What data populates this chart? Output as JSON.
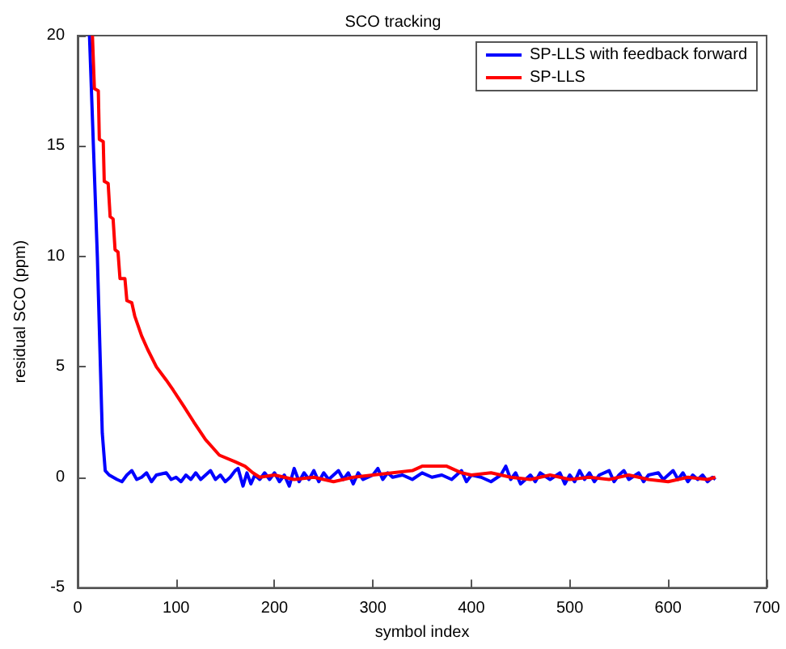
{
  "chart_data": {
    "type": "line",
    "title": "SCO tracking",
    "xlabel": "symbol index",
    "ylabel": "residual SCO (ppm)",
    "xlim": [
      0,
      700
    ],
    "xticks": [
      0,
      100,
      200,
      300,
      400,
      500,
      600,
      700
    ],
    "ylim": [
      -5,
      20
    ],
    "yticks": [
      -5,
      0,
      5,
      10,
      15,
      20
    ],
    "grid": false,
    "legend": "top right",
    "marker": "none",
    "line_style": "solid",
    "series": [
      {
        "name": "SP-LLS with feedback forward",
        "color": "#0000ff",
        "x": [
          12,
          20,
          25,
          28,
          32,
          40,
          45,
          50,
          55,
          60,
          65,
          70,
          75,
          80,
          90,
          95,
          100,
          105,
          110,
          115,
          120,
          125,
          130,
          135,
          140,
          145,
          150,
          155,
          160,
          163,
          168,
          172,
          176,
          180,
          185,
          190,
          195,
          200,
          205,
          210,
          215,
          220,
          225,
          230,
          235,
          240,
          245,
          250,
          255,
          260,
          265,
          270,
          275,
          280,
          285,
          290,
          300,
          305,
          310,
          315,
          320,
          330,
          340,
          350,
          360,
          370,
          380,
          390,
          395,
          400,
          410,
          420,
          430,
          435,
          440,
          445,
          450,
          460,
          465,
          470,
          480,
          490,
          495,
          500,
          505,
          510,
          515,
          520,
          525,
          530,
          540,
          545,
          550,
          555,
          560,
          570,
          575,
          580,
          590,
          595,
          600,
          605,
          610,
          615,
          620,
          625,
          630,
          635,
          640,
          645,
          648
        ],
        "values": [
          20,
          10,
          2,
          0.3,
          0.1,
          -0.1,
          -0.2,
          0.1,
          0.3,
          -0.1,
          0,
          0.2,
          -0.2,
          0.1,
          0.2,
          -0.1,
          0,
          -0.2,
          0.1,
          -0.1,
          0.2,
          -0.1,
          0.1,
          0.3,
          -0.1,
          0.1,
          -0.2,
          0,
          0.3,
          0.4,
          -0.4,
          0.2,
          -0.3,
          0.1,
          -0.1,
          0.2,
          -0.1,
          0.2,
          -0.2,
          0.1,
          -0.4,
          0.4,
          -0.2,
          0.2,
          -0.1,
          0.3,
          -0.2,
          0.2,
          -0.1,
          0.1,
          0.3,
          -0.1,
          0.2,
          -0.3,
          0.2,
          -0.1,
          0.1,
          0.4,
          -0.1,
          0.2,
          0,
          0.1,
          -0.1,
          0.2,
          0,
          0.1,
          -0.1,
          0.3,
          -0.2,
          0.1,
          0,
          -0.2,
          0.1,
          0.5,
          -0.1,
          0.2,
          -0.3,
          0.1,
          -0.2,
          0.2,
          -0.1,
          0.2,
          -0.3,
          0.1,
          -0.2,
          0.3,
          -0.1,
          0.2,
          -0.2,
          0.1,
          0.3,
          -0.2,
          0.1,
          0.3,
          -0.1,
          0.2,
          -0.2,
          0.1,
          0.2,
          -0.1,
          0.1,
          0.3,
          -0.1,
          0.2,
          -0.2,
          0.1,
          -0.1,
          0.1,
          -0.2,
          0,
          -0.1
        ]
      },
      {
        "name": "SP-LLS",
        "color": "#ff0000",
        "x": [
          15,
          17,
          21,
          22,
          26,
          27,
          31,
          33,
          36,
          38,
          41,
          43,
          48,
          50,
          55,
          58,
          65,
          71,
          80,
          90,
          97,
          108,
          118,
          130,
          144,
          160,
          170,
          178,
          185,
          200,
          220,
          240,
          260,
          280,
          300,
          320,
          340,
          350,
          375,
          390,
          400,
          420,
          440,
          460,
          480,
          500,
          520,
          540,
          560,
          580,
          600,
          620,
          640,
          648
        ],
        "values": [
          20,
          17.6,
          17.5,
          15.3,
          15.2,
          13.4,
          13.3,
          11.8,
          11.7,
          10.3,
          10.2,
          9,
          9,
          8,
          7.9,
          7.3,
          6.4,
          5.8,
          5,
          4.4,
          3.95,
          3.2,
          2.5,
          1.7,
          1,
          0.7,
          0.5,
          0.2,
          0,
          0.1,
          -0.1,
          0,
          -0.2,
          0,
          0.1,
          0.2,
          0.3,
          0.5,
          0.5,
          0.2,
          0.1,
          0.2,
          0,
          -0.1,
          0.1,
          -0.1,
          0,
          -0.1,
          0.1,
          -0.1,
          -0.2,
          0,
          -0.1,
          0
        ]
      }
    ]
  }
}
